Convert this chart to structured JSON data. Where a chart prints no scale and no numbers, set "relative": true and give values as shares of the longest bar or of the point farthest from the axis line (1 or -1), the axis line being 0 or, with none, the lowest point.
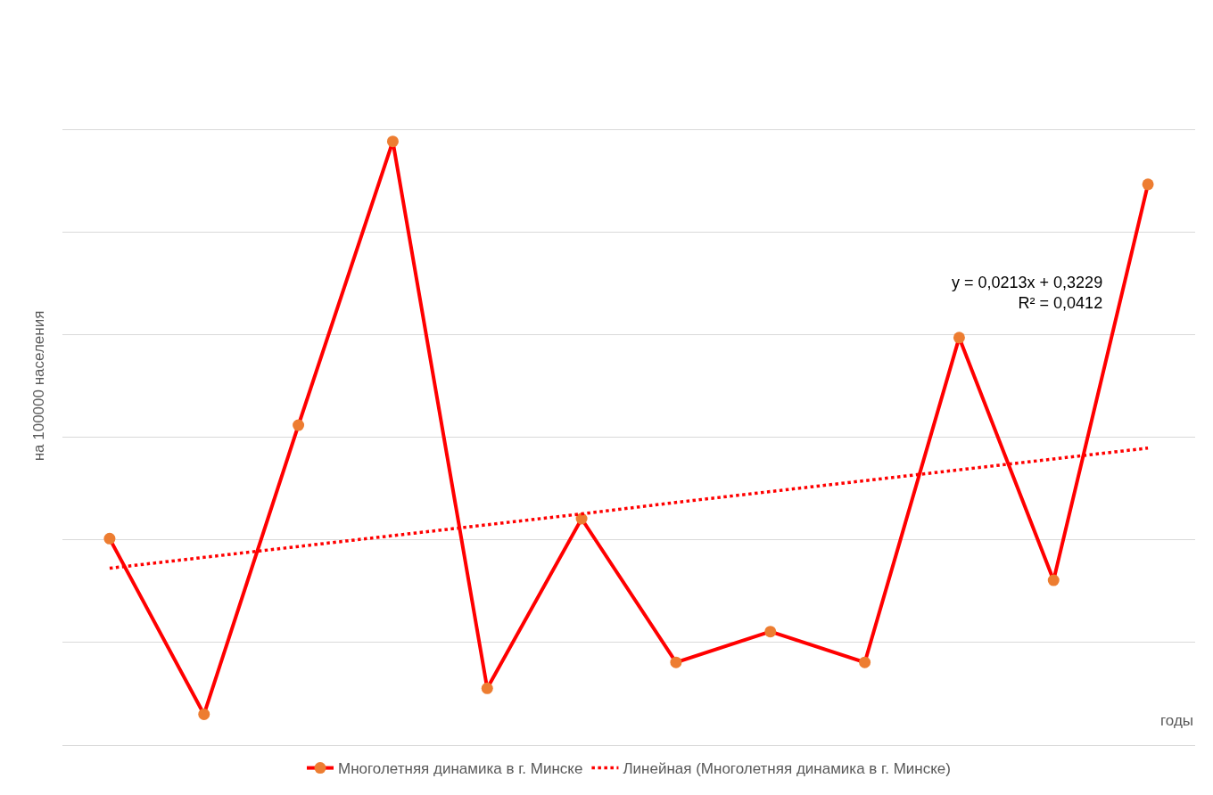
{
  "chart_data": {
    "type": "line",
    "relative": true,
    "ylabel": "на 100000 населения",
    "xlabel": "годы",
    "categories": [
      null,
      null,
      null,
      null,
      null,
      null,
      null,
      null,
      null,
      null,
      null,
      null
    ],
    "series": [
      {
        "name": "Многолетняя динамика в г. Минске",
        "color": "#ff0000",
        "colors": [
          "#ed7d31",
          "#ed7d31",
          "#ed7d31",
          "#ed7d31",
          "#ed7d31",
          "#ed7d31",
          "#ed7d31",
          "#ed7d31",
          "#ed7d31",
          "#ed7d31",
          "#ed7d31",
          "#ed7d31"
        ],
        "marker": "circle",
        "line_style": "solid",
        "values": [
          0.342,
          0.051,
          0.53,
          1,
          0.094,
          0.375,
          0.137,
          0.188,
          0.137,
          0.675,
          0.273,
          0.929
        ]
      },
      {
        "name": "Линейная (Многолетняя динамика в г. Минске)",
        "type": "line",
        "color": "#ff0000",
        "marker": "none",
        "line_style": "dotted",
        "values": [
          0.293,
          0.311,
          0.329,
          0.347,
          0.365,
          0.383,
          0.402,
          0.42,
          0.438,
          0.456,
          0.474,
          0.492
        ]
      }
    ],
    "annotations": [
      "y = 0,0213x + 0,3229\nR² = 0,0412"
    ],
    "grid": "y",
    "legend": "bottom"
  }
}
